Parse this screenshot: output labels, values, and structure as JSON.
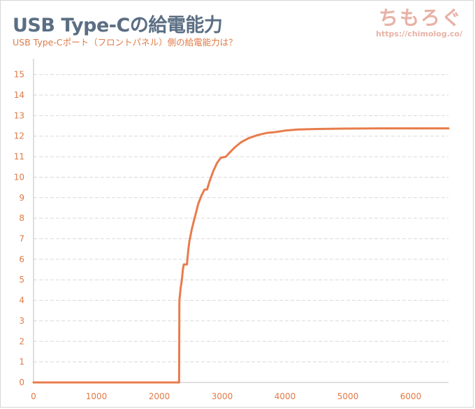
{
  "header": {
    "title": "USB Type-Cの給電能力",
    "subtitle": "USB Type-Cポート（フロントパネル）側の給電能力は？"
  },
  "brand": {
    "logo": "ちもろぐ",
    "url": "https://chimolog.co/"
  },
  "colors": {
    "line": "#e87c4b",
    "tick_text": "#e07a46",
    "grid": "#d9d9d9",
    "title": "#5b6e83",
    "brand": "#e8b2a6"
  },
  "chart_data": {
    "type": "line",
    "title": "USB Type-Cの給電能力",
    "subtitle": "USB Type-Cポート（フロントパネル）側の給電能力は？",
    "xlabel": "",
    "ylabel": "",
    "xlim": [
      0,
      6600
    ],
    "ylim": [
      0,
      15.5
    ],
    "x_ticks": [
      0,
      1000,
      2000,
      3000,
      4000,
      5000,
      6000
    ],
    "y_ticks": [
      0,
      1,
      2,
      3,
      4,
      5,
      6,
      7,
      8,
      9,
      10,
      11,
      12,
      13,
      14,
      15
    ],
    "grid": "horizontal-dashed",
    "legend": "none",
    "series": [
      {
        "points": [
          [
            0,
            0
          ],
          [
            2300,
            0
          ],
          [
            2315,
            0
          ],
          [
            2320,
            4.0
          ],
          [
            2340,
            4.6
          ],
          [
            2360,
            5.0
          ],
          [
            2375,
            5.5
          ],
          [
            2390,
            5.75
          ],
          [
            2440,
            5.75
          ],
          [
            2460,
            6.4
          ],
          [
            2480,
            6.9
          ],
          [
            2520,
            7.5
          ],
          [
            2570,
            8.1
          ],
          [
            2620,
            8.7
          ],
          [
            2670,
            9.1
          ],
          [
            2720,
            9.4
          ],
          [
            2760,
            9.4
          ],
          [
            2800,
            9.8
          ],
          [
            2860,
            10.3
          ],
          [
            2920,
            10.7
          ],
          [
            2980,
            10.95
          ],
          [
            3060,
            11.0
          ],
          [
            3120,
            11.2
          ],
          [
            3200,
            11.45
          ],
          [
            3300,
            11.7
          ],
          [
            3420,
            11.9
          ],
          [
            3560,
            12.05
          ],
          [
            3700,
            12.15
          ],
          [
            3850,
            12.2
          ],
          [
            4000,
            12.27
          ],
          [
            4200,
            12.32
          ],
          [
            4500,
            12.35
          ],
          [
            5000,
            12.37
          ],
          [
            5500,
            12.38
          ],
          [
            6000,
            12.38
          ],
          [
            6600,
            12.38
          ]
        ]
      }
    ]
  }
}
